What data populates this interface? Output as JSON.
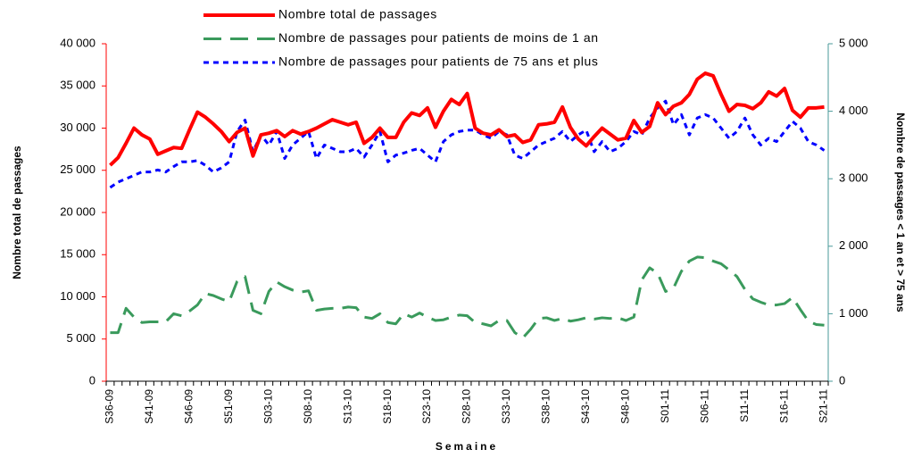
{
  "chart_data": {
    "type": "line",
    "xlabel": "Semaine",
    "ylabel": "Nombre total de passages",
    "y2label": "Nombre de passages < 1 an et > 75 ans",
    "categories": [
      "S36-09",
      null,
      null,
      null,
      null,
      "S41-09",
      null,
      null,
      null,
      null,
      "S46-09",
      null,
      null,
      null,
      null,
      "S51-09",
      null,
      null,
      null,
      null,
      "S03-10",
      null,
      null,
      null,
      null,
      "S08-10",
      null,
      null,
      null,
      null,
      "S13-10",
      null,
      null,
      null,
      null,
      "S18-10",
      null,
      null,
      null,
      null,
      "S23-10",
      null,
      null,
      null,
      null,
      "S28-10",
      null,
      null,
      null,
      null,
      "S33-10",
      null,
      null,
      null,
      null,
      "S38-10",
      null,
      null,
      null,
      null,
      "S43-10",
      null,
      null,
      null,
      null,
      "S48-10",
      null,
      null,
      null,
      null,
      "S01-11",
      null,
      null,
      null,
      null,
      "S06-11",
      null,
      null,
      null,
      null,
      "S11-11",
      null,
      null,
      null,
      null,
      "S16-11",
      null,
      null,
      null,
      null,
      "S21-11"
    ],
    "series": [
      {
        "name": "Nombre total de passages",
        "color": "#ff0000",
        "axis": "y",
        "dash": "solid",
        "values": [
          25600,
          26500,
          28200,
          30000,
          29200,
          28700,
          26900,
          27300,
          27700,
          27600,
          29800,
          31900,
          31300,
          30500,
          29600,
          28400,
          29500,
          30000,
          26700,
          29200,
          29400,
          29700,
          29000,
          29700,
          29300,
          29600,
          30000,
          30500,
          31000,
          30700,
          30400,
          30700,
          28200,
          28900,
          30000,
          28900,
          28900,
          30700,
          31800,
          31500,
          32400,
          30100,
          32000,
          33400,
          32800,
          34100,
          30000,
          29400,
          29200,
          29800,
          29000,
          29200,
          28300,
          28600,
          30400,
          30500,
          30700,
          32500,
          30100,
          28700,
          27900,
          29000,
          30000,
          29300,
          28600,
          28800,
          30900,
          29500,
          30200,
          33000,
          31600,
          32600,
          33000,
          34000,
          35800,
          36500,
          36200,
          34000,
          32000,
          32800,
          32700,
          32300,
          33000,
          34300,
          33800,
          34700,
          32100,
          31300,
          32400,
          32400,
          32500
        ]
      },
      {
        "name": "Nombre de passages pour patients de moins de 1 an",
        "color": "#3a9a5c",
        "axis": "y2",
        "dash": "long",
        "values": [
          720,
          720,
          1080,
          950,
          870,
          880,
          880,
          880,
          1000,
          970,
          1040,
          1130,
          1300,
          1270,
          1220,
          1180,
          1480,
          1550,
          1050,
          1000,
          1330,
          1470,
          1400,
          1350,
          1320,
          1340,
          1050,
          1070,
          1080,
          1080,
          1100,
          1090,
          950,
          930,
          1000,
          870,
          850,
          1000,
          950,
          1010,
          950,
          900,
          910,
          950,
          980,
          970,
          870,
          850,
          820,
          900,
          900,
          720,
          640,
          770,
          930,
          940,
          900,
          930,
          890,
          910,
          940,
          920,
          940,
          930,
          940,
          900,
          950,
          1500,
          1680,
          1600,
          1330,
          1380,
          1630,
          1780,
          1840,
          1830,
          1780,
          1740,
          1650,
          1550,
          1360,
          1220,
          1170,
          1130,
          1130,
          1150,
          1240,
          1060,
          890,
          840,
          830
        ]
      },
      {
        "name": "Nombre de passages pour patients de 75 ans et plus",
        "color": "#0000ff",
        "axis": "y2",
        "dash": "short",
        "values": [
          2870,
          2950,
          3000,
          3050,
          3100,
          3100,
          3130,
          3100,
          3180,
          3250,
          3250,
          3270,
          3200,
          3100,
          3160,
          3250,
          3700,
          3870,
          3400,
          3650,
          3500,
          3700,
          3300,
          3500,
          3600,
          3700,
          3300,
          3500,
          3450,
          3400,
          3400,
          3450,
          3320,
          3500,
          3700,
          3250,
          3350,
          3380,
          3420,
          3450,
          3350,
          3250,
          3550,
          3650,
          3700,
          3720,
          3720,
          3650,
          3600,
          3700,
          3650,
          3350,
          3300,
          3400,
          3500,
          3550,
          3600,
          3700,
          3550,
          3650,
          3720,
          3400,
          3550,
          3400,
          3450,
          3550,
          3700,
          3650,
          3900,
          4050,
          4150,
          3800,
          3950,
          3650,
          3900,
          3950,
          3900,
          3750,
          3600,
          3700,
          3900,
          3650,
          3500,
          3600,
          3550,
          3700,
          3850,
          3750,
          3550,
          3500,
          3420
        ]
      }
    ],
    "ylim": [
      0,
      40000
    ],
    "yticks": [
      0,
      {
        "value": 5000,
        "label": "5 000"
      },
      {
        "value": 10000,
        "label": "10 000"
      },
      {
        "value": 15000,
        "label": "15 000"
      },
      {
        "value": 20000,
        "label": "20 000"
      },
      {
        "value": 25000,
        "label": "25 000"
      },
      {
        "value": 30000,
        "label": "30 000"
      },
      {
        "value": 35000,
        "label": "35 000"
      },
      {
        "value": 40000,
        "label": "40 000"
      }
    ],
    "y2lim": [
      0,
      5000
    ],
    "y2ticks": [
      0,
      {
        "value": 1000,
        "label": "1 000"
      },
      {
        "value": 2000,
        "label": "2 000"
      },
      {
        "value": 3000,
        "label": "3 000"
      },
      {
        "value": 4000,
        "label": "4 000"
      },
      {
        "value": 5000,
        "label": "5 000"
      }
    ],
    "ycolor": "#ff0000",
    "y2color": "#4a9a9a",
    "grid": false
  }
}
